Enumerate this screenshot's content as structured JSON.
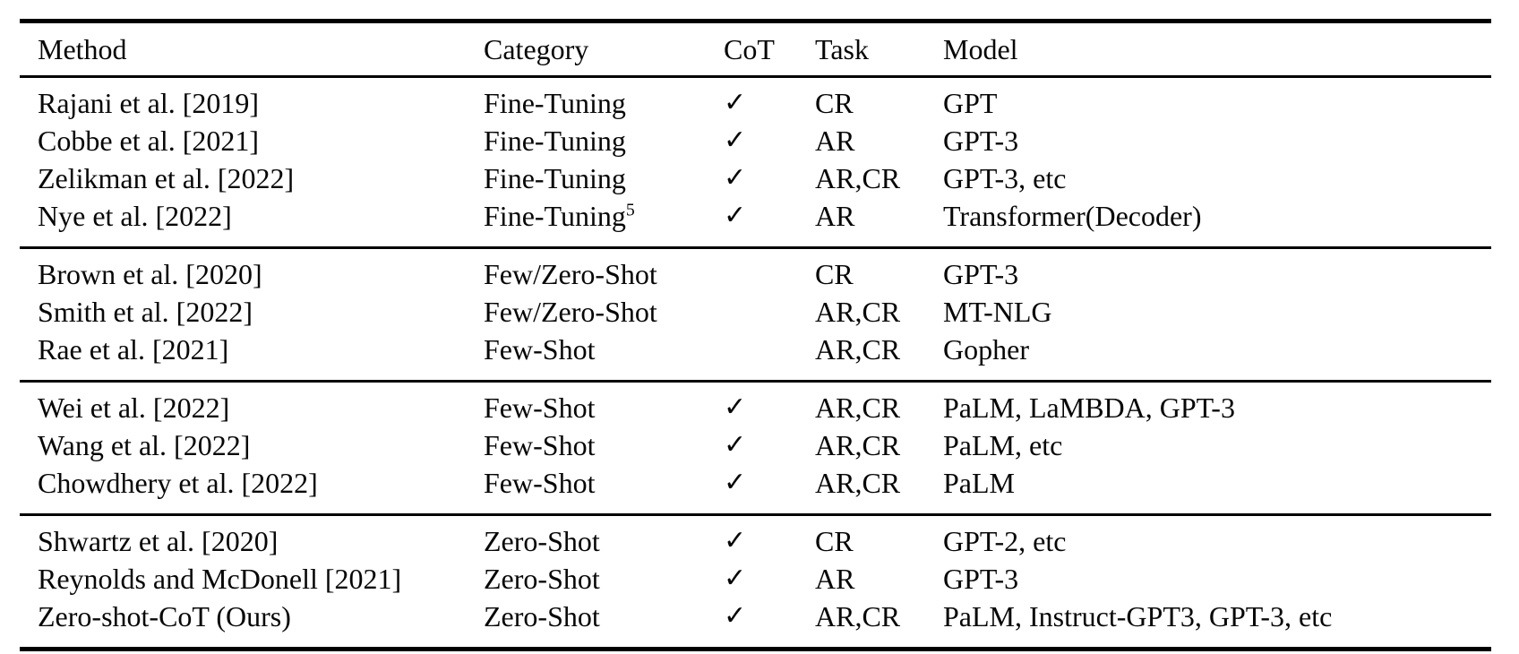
{
  "page": {
    "background_color": "#ffffff",
    "text_color": "#070707",
    "rule_color": "#000000"
  },
  "table": {
    "columns": [
      {
        "key": "method",
        "label": "Method"
      },
      {
        "key": "category",
        "label": "Category"
      },
      {
        "key": "cot",
        "label": "CoT"
      },
      {
        "key": "task",
        "label": "Task"
      },
      {
        "key": "model",
        "label": "Model"
      }
    ],
    "checkmark_glyph": "✓",
    "sections": [
      {
        "rows": [
          {
            "method": "Rajani et al. [2019]",
            "category": "Fine-Tuning",
            "category_sup": "",
            "cot": "✓",
            "task": "CR",
            "model": "GPT"
          },
          {
            "method": "Cobbe et al. [2021]",
            "category": "Fine-Tuning",
            "category_sup": "",
            "cot": "✓",
            "task": "AR",
            "model": "GPT-3"
          },
          {
            "method": "Zelikman et al. [2022]",
            "category": "Fine-Tuning",
            "category_sup": "",
            "cot": "✓",
            "task": "AR,CR",
            "model": "GPT-3, etc"
          },
          {
            "method": "Nye et al. [2022]",
            "category": "Fine-Tuning",
            "category_sup": "5",
            "cot": "✓",
            "task": "AR",
            "model": "Transformer(Decoder)"
          }
        ]
      },
      {
        "rows": [
          {
            "method": "Brown et al. [2020]",
            "category": "Few/Zero-Shot",
            "category_sup": "",
            "cot": "",
            "task": "CR",
            "model": "GPT-3"
          },
          {
            "method": "Smith et al. [2022]",
            "category": "Few/Zero-Shot",
            "category_sup": "",
            "cot": "",
            "task": "AR,CR",
            "model": "MT-NLG"
          },
          {
            "method": "Rae et al. [2021]",
            "category": "Few-Shot",
            "category_sup": "",
            "cot": "",
            "task": "AR,CR",
            "model": "Gopher"
          }
        ]
      },
      {
        "rows": [
          {
            "method": "Wei et al. [2022]",
            "category": "Few-Shot",
            "category_sup": "",
            "cot": "✓",
            "task": "AR,CR",
            "model": "PaLM, LaMBDA, GPT-3"
          },
          {
            "method": "Wang et al. [2022]",
            "category": "Few-Shot",
            "category_sup": "",
            "cot": "✓",
            "task": "AR,CR",
            "model": "PaLM, etc"
          },
          {
            "method": "Chowdhery et al. [2022]",
            "category": "Few-Shot",
            "category_sup": "",
            "cot": "✓",
            "task": "AR,CR",
            "model": "PaLM"
          }
        ]
      },
      {
        "rows": [
          {
            "method": "Shwartz et al. [2020]",
            "category": "Zero-Shot",
            "category_sup": "",
            "cot": "✓",
            "task": "CR",
            "model": "GPT-2, etc"
          },
          {
            "method": "Reynolds and McDonell [2021]",
            "category": "Zero-Shot",
            "category_sup": "",
            "cot": "✓",
            "task": "AR",
            "model": "GPT-3"
          },
          {
            "method": "Zero-shot-CoT (Ours)",
            "category": "Zero-Shot",
            "category_sup": "",
            "cot": "✓",
            "task": "AR,CR",
            "model": "PaLM, Instruct-GPT3, GPT-3, etc"
          }
        ]
      }
    ]
  }
}
